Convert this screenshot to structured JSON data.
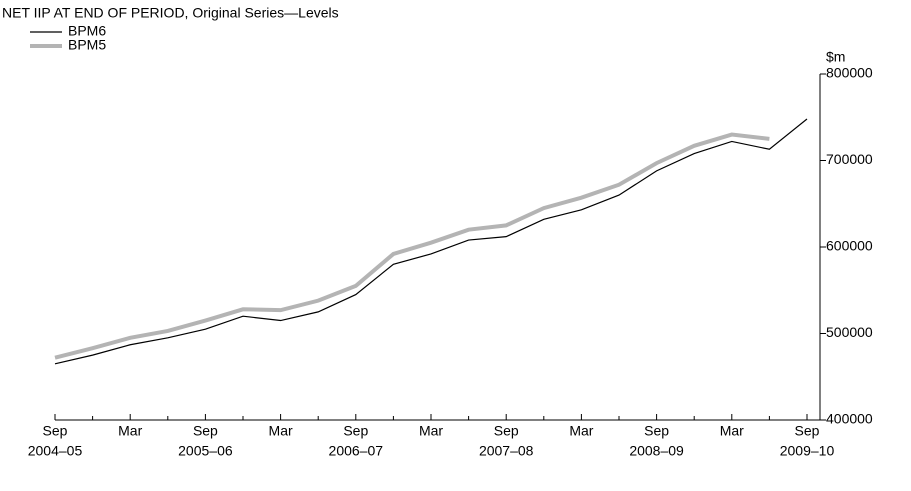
{
  "chart_data": {
    "type": "line",
    "title": "NET IIP AT END OF PERIOD, Original Series—Levels",
    "y_label": "$m",
    "categories": [
      "Sep",
      null,
      "Mar",
      null,
      "Sep",
      null,
      "Mar",
      null,
      "Sep",
      null,
      "Mar",
      null,
      "Sep",
      null,
      "Mar",
      null,
      "Sep",
      null,
      "Mar",
      null,
      "Sep"
    ],
    "year_labels": [
      "2004–05",
      null,
      null,
      null,
      "2005–06",
      null,
      null,
      null,
      "2006–07",
      null,
      null,
      null,
      "2007–08",
      null,
      null,
      null,
      "2008–09",
      null,
      null,
      null,
      "2009–10"
    ],
    "series": [
      {
        "name": "BPM6",
        "color": "#000000",
        "values": [
          465000,
          475000,
          487000,
          495000,
          505000,
          520000,
          515000,
          525000,
          545000,
          580000,
          592000,
          608000,
          612000,
          632000,
          643000,
          660000,
          688000,
          708000,
          722000,
          713000,
          748000
        ]
      },
      {
        "name": "BPM5",
        "color": "#b4b4b4",
        "values": [
          472000,
          483000,
          495000,
          503000,
          515000,
          528000,
          527000,
          538000,
          555000,
          592000,
          605000,
          620000,
          625000,
          645000,
          657000,
          672000,
          697000,
          717000,
          730000,
          725000,
          null
        ]
      }
    ],
    "ylim": [
      400000,
      800000
    ],
    "yticks": [
      400000,
      500000,
      600000,
      700000,
      800000
    ],
    "legend": "top-left"
  }
}
